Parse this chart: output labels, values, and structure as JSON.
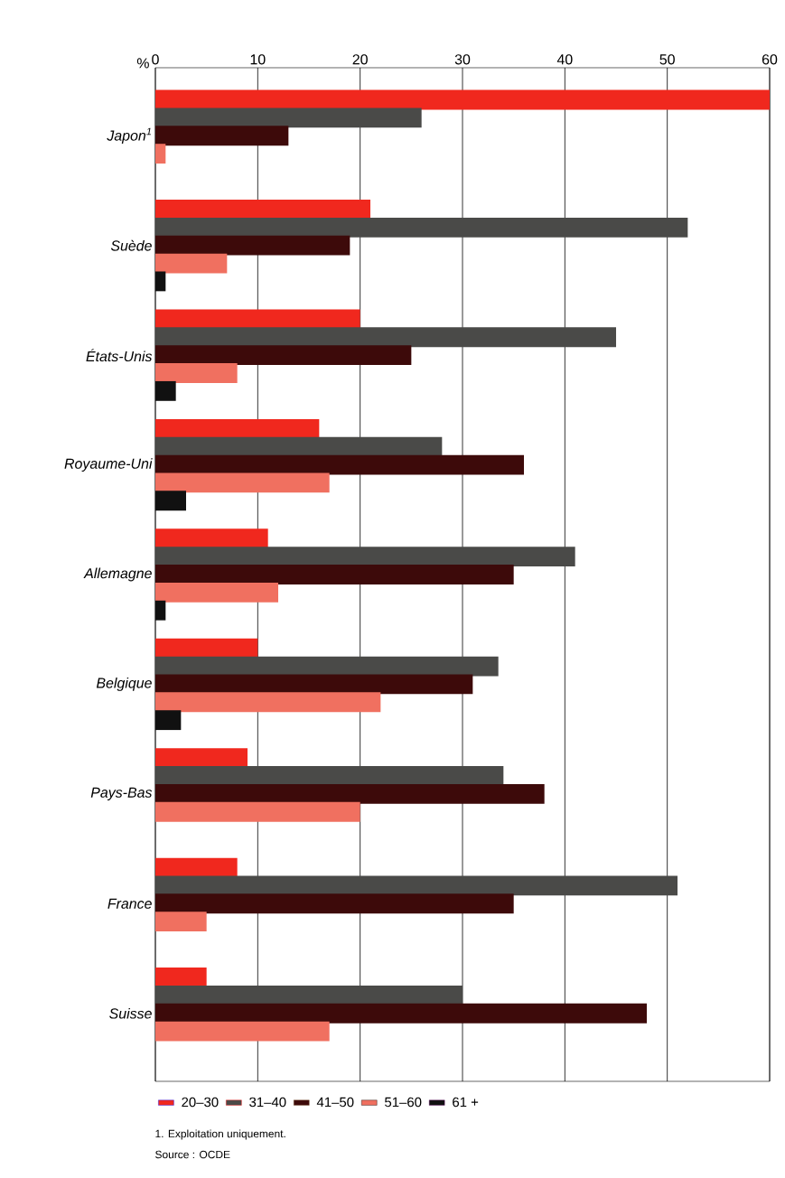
{
  "chart_data": {
    "type": "bar",
    "orientation": "horizontal",
    "xlabel": "%",
    "categories": [
      "Japon$^{1}$",
      "Suède",
      "États-Unis",
      "Royaume-Uni",
      "Allemagne",
      "Belgique",
      "Pays-Bas",
      "France",
      "Suisse"
    ],
    "series": [
      {
        "name": "20–30",
        "color": "#f0281e",
        "values": [
          60,
          21,
          20,
          16,
          11,
          10,
          9,
          8,
          5
        ]
      },
      {
        "name": "31–40",
        "color": "#4a4a48",
        "values": [
          26,
          52,
          45,
          28,
          41,
          33.5,
          34,
          51,
          30
        ]
      },
      {
        "name": "41–50",
        "color": "#3d0a0a",
        "values": [
          13,
          19,
          25,
          36,
          35,
          31,
          38,
          35,
          48
        ]
      },
      {
        "name": "51–60",
        "color": "#f07060",
        "values": [
          1,
          7,
          8,
          17,
          12,
          22,
          20,
          5,
          17
        ]
      },
      {
        "name": "61 +",
        "color": "#111111",
        "values": [
          null,
          1,
          2,
          3,
          1,
          2.5,
          null,
          null,
          null
        ]
      }
    ],
    "xlim": [
      0,
      60
    ],
    "xticks": [
      0,
      10,
      20,
      30,
      40,
      50,
      60
    ],
    "grid": "x",
    "legend": "bottom",
    "annotations": [
      "1. Exploitation uniquement.",
      "Source : OCDE"
    ]
  }
}
